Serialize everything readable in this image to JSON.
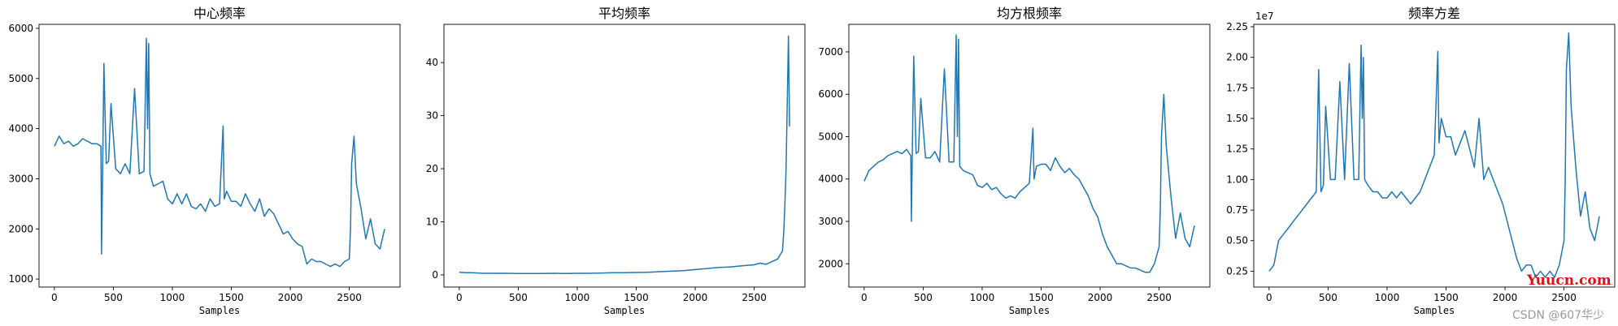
{
  "chart_data": [
    {
      "type": "line",
      "title": "中心频率",
      "xlabel": "Samples",
      "ylabel": "",
      "xlim": [
        -130,
        2930
      ],
      "ylim": [
        840,
        6080
      ],
      "xticks": [
        0,
        500,
        1000,
        1500,
        2000,
        2500
      ],
      "yticks": [
        1000,
        2000,
        3000,
        4000,
        5000,
        6000
      ],
      "y_offset_label": "",
      "color": "#1f77b4",
      "series": [
        {
          "x": [
            0,
            40,
            80,
            120,
            160,
            200,
            240,
            280,
            320,
            360,
            395,
            400,
            410,
            420,
            440,
            460,
            480,
            520,
            560,
            600,
            640,
            680,
            720,
            760,
            780,
            790,
            800,
            810,
            840,
            880,
            920,
            960,
            1000,
            1040,
            1080,
            1120,
            1160,
            1200,
            1240,
            1280,
            1320,
            1360,
            1400,
            1430,
            1440,
            1460,
            1500,
            1540,
            1580,
            1620,
            1660,
            1700,
            1740,
            1780,
            1820,
            1860,
            1900,
            1940,
            1980,
            2020,
            2060,
            2100,
            2140,
            2180,
            2220,
            2260,
            2300,
            2340,
            2380,
            2420,
            2460,
            2500,
            2510,
            2520,
            2540,
            2560,
            2600,
            2640,
            2680,
            2720,
            2760,
            2800
          ],
          "values": [
            3650,
            3850,
            3700,
            3750,
            3650,
            3700,
            3800,
            3750,
            3700,
            3700,
            3650,
            1500,
            3400,
            5300,
            3300,
            3350,
            4500,
            3200,
            3100,
            3300,
            3100,
            4800,
            3100,
            3150,
            5800,
            4000,
            5700,
            3100,
            2850,
            2900,
            2950,
            2600,
            2500,
            2700,
            2500,
            2700,
            2450,
            2400,
            2500,
            2350,
            2600,
            2450,
            2500,
            4050,
            2600,
            2750,
            2550,
            2550,
            2450,
            2700,
            2500,
            2350,
            2600,
            2250,
            2400,
            2300,
            2100,
            1900,
            1950,
            1800,
            1700,
            1650,
            1300,
            1400,
            1350,
            1350,
            1300,
            1250,
            1300,
            1250,
            1350,
            1400,
            2000,
            3300,
            3850,
            2900,
            2400,
            1800,
            2200,
            1700,
            1600,
            2000
          ]
        }
      ]
    },
    {
      "type": "line",
      "title": "平均频率",
      "xlabel": "Samples",
      "ylabel": "",
      "xlim": [
        -130,
        2930
      ],
      "ylim": [
        -2.3,
        47.2
      ],
      "xticks": [
        0,
        500,
        1000,
        1500,
        2000,
        2500
      ],
      "yticks": [
        0,
        10,
        20,
        30,
        40
      ],
      "y_offset_label": "",
      "color": "#1f77b4",
      "series": [
        {
          "x": [
            0,
            50,
            100,
            200,
            300,
            400,
            500,
            600,
            700,
            800,
            900,
            1000,
            1100,
            1200,
            1300,
            1400,
            1500,
            1600,
            1700,
            1800,
            1900,
            2000,
            2100,
            2200,
            2300,
            2400,
            2500,
            2550,
            2600,
            2650,
            2700,
            2720,
            2740,
            2750,
            2760,
            2770,
            2780,
            2790,
            2800
          ],
          "values": [
            0.5,
            0.4,
            0.4,
            0.3,
            0.3,
            0.3,
            0.25,
            0.25,
            0.25,
            0.3,
            0.25,
            0.3,
            0.3,
            0.35,
            0.4,
            0.4,
            0.45,
            0.5,
            0.6,
            0.7,
            0.8,
            1.0,
            1.2,
            1.4,
            1.5,
            1.7,
            1.9,
            2.2,
            2.0,
            2.5,
            3.0,
            3.8,
            4.5,
            8,
            13,
            20,
            32,
            45,
            28
          ]
        }
      ]
    },
    {
      "type": "line",
      "title": "均方根频率",
      "xlabel": "Samples",
      "ylabel": "",
      "xlim": [
        -130,
        2930
      ],
      "ylim": [
        1450,
        7650
      ],
      "xticks": [
        0,
        500,
        1000,
        1500,
        2000,
        2500
      ],
      "yticks": [
        2000,
        3000,
        4000,
        5000,
        6000,
        7000
      ],
      "y_offset_label": "",
      "color": "#1f77b4",
      "series": [
        {
          "x": [
            0,
            40,
            80,
            120,
            160,
            200,
            240,
            280,
            320,
            360,
            395,
            400,
            410,
            420,
            440,
            460,
            480,
            520,
            560,
            600,
            640,
            680,
            720,
            760,
            780,
            790,
            800,
            810,
            840,
            880,
            920,
            960,
            1000,
            1040,
            1080,
            1120,
            1160,
            1200,
            1240,
            1280,
            1320,
            1360,
            1400,
            1430,
            1440,
            1460,
            1500,
            1540,
            1580,
            1620,
            1660,
            1700,
            1740,
            1780,
            1820,
            1860,
            1900,
            1940,
            1980,
            2020,
            2060,
            2100,
            2140,
            2180,
            2220,
            2260,
            2300,
            2340,
            2380,
            2420,
            2460,
            2500,
            2510,
            2520,
            2540,
            2560,
            2600,
            2640,
            2680,
            2720,
            2760,
            2800
          ],
          "values": [
            3950,
            4200,
            4300,
            4400,
            4450,
            4550,
            4600,
            4650,
            4600,
            4700,
            4550,
            3000,
            5100,
            6900,
            4600,
            4650,
            5900,
            4500,
            4500,
            4650,
            4400,
            6600,
            4400,
            4400,
            7400,
            5000,
            7300,
            4300,
            4200,
            4150,
            4100,
            3850,
            3800,
            3900,
            3750,
            3800,
            3650,
            3550,
            3600,
            3550,
            3700,
            3800,
            3900,
            5200,
            4000,
            4300,
            4350,
            4350,
            4200,
            4500,
            4300,
            4150,
            4250,
            4100,
            4000,
            3800,
            3600,
            3300,
            3100,
            2700,
            2400,
            2200,
            2000,
            2000,
            1950,
            1900,
            1900,
            1850,
            1800,
            1800,
            2000,
            2400,
            3300,
            5000,
            6000,
            4800,
            3600,
            2600,
            3200,
            2600,
            2400,
            2900
          ]
        }
      ]
    },
    {
      "type": "line",
      "title": "频率方差",
      "xlabel": "Samples",
      "ylabel": "",
      "xlim": [
        -130,
        2930
      ],
      "ylim": [
        0.12,
        2.27
      ],
      "xticks": [
        0,
        500,
        1000,
        1500,
        2000,
        2500
      ],
      "yticks": [
        0.25,
        0.5,
        0.75,
        1.0,
        1.25,
        1.5,
        1.75,
        2.0,
        2.25
      ],
      "y_offset_label": "1e7",
      "color": "#1f77b4",
      "series": [
        {
          "x": [
            0,
            40,
            80,
            120,
            160,
            200,
            240,
            280,
            320,
            360,
            400,
            420,
            440,
            460,
            480,
            520,
            560,
            600,
            640,
            680,
            720,
            760,
            780,
            790,
            800,
            810,
            840,
            880,
            920,
            960,
            1000,
            1040,
            1080,
            1120,
            1160,
            1200,
            1240,
            1280,
            1320,
            1360,
            1400,
            1430,
            1440,
            1460,
            1500,
            1540,
            1580,
            1620,
            1660,
            1700,
            1740,
            1780,
            1820,
            1860,
            1900,
            1940,
            1980,
            2020,
            2060,
            2100,
            2140,
            2180,
            2220,
            2260,
            2300,
            2340,
            2380,
            2420,
            2460,
            2500,
            2510,
            2520,
            2540,
            2560,
            2600,
            2640,
            2680,
            2720,
            2760,
            2800
          ],
          "values": [
            0.25,
            0.3,
            0.5,
            0.55,
            0.6,
            0.65,
            0.7,
            0.75,
            0.8,
            0.85,
            0.9,
            1.9,
            0.9,
            0.95,
            1.6,
            1.0,
            1.0,
            1.8,
            1.0,
            1.95,
            1.0,
            1.0,
            2.1,
            1.5,
            2.0,
            1.0,
            0.95,
            0.9,
            0.9,
            0.85,
            0.85,
            0.9,
            0.85,
            0.9,
            0.85,
            0.8,
            0.85,
            0.9,
            1.0,
            1.1,
            1.2,
            2.05,
            1.3,
            1.5,
            1.35,
            1.35,
            1.2,
            1.3,
            1.4,
            1.25,
            1.1,
            1.5,
            1.0,
            1.1,
            1.0,
            0.9,
            0.8,
            0.65,
            0.5,
            0.35,
            0.25,
            0.3,
            0.3,
            0.2,
            0.25,
            0.2,
            0.25,
            0.2,
            0.3,
            0.5,
            1.0,
            1.9,
            2.2,
            1.6,
            1.1,
            0.7,
            0.9,
            0.6,
            0.5,
            0.7
          ]
        }
      ]
    }
  ],
  "watermark": {
    "site": "Yuucn.com",
    "author": "CSDN @607华少"
  }
}
